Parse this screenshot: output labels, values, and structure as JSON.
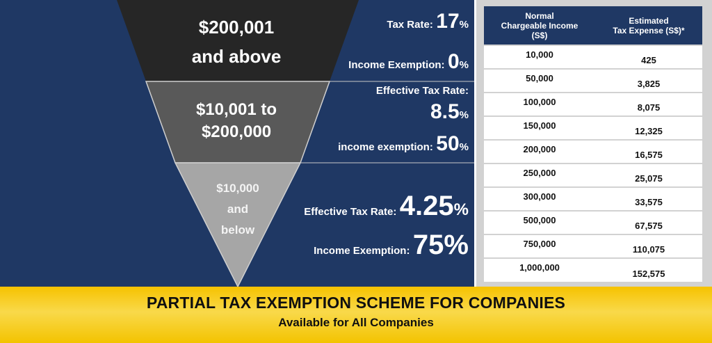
{
  "tiers": [
    {
      "line1": "$200,001",
      "line2": "and above"
    },
    {
      "line1": "$10,001 to",
      "line2": "$200,000"
    },
    {
      "line1": "$10,000",
      "line2": "and",
      "line3": "below"
    }
  ],
  "rates": {
    "tier1": {
      "tax_rate_label": "Tax Rate:",
      "tax_rate": "17",
      "exemption_label": "Income Exemption:",
      "exemption": "0",
      "pct": "%"
    },
    "tier2": {
      "tax_rate_label": "Effective Tax Rate:",
      "tax_rate": "8.5",
      "exemption_label": "income exemption:",
      "exemption": "50",
      "pct": "%"
    },
    "tier3": {
      "tax_rate_label": "Effective Tax Rate:",
      "tax_rate": "4.25",
      "exemption_label": "Income Exemption:",
      "exemption": "75",
      "pct": "%"
    }
  },
  "table": {
    "col1_header": [
      "Normal",
      "Chargeable Income",
      "(S$)"
    ],
    "col2_header": [
      "Estimated",
      "Tax Expense (S$)*"
    ],
    "rows": [
      [
        "10,000",
        "425"
      ],
      [
        "50,000",
        "3,825"
      ],
      [
        "100,000",
        "8,075"
      ],
      [
        "150,000",
        "12,325"
      ],
      [
        "200,000",
        "16,575"
      ],
      [
        "250,000",
        "25,075"
      ],
      [
        "300,000",
        "33,575"
      ],
      [
        "500,000",
        "67,575"
      ],
      [
        "750,000",
        "110,075"
      ],
      [
        "1,000,000",
        "152,575"
      ]
    ]
  },
  "footer": {
    "title": "PARTIAL TAX EXEMPTION SCHEME FOR COMPANIES",
    "subtitle": "Available for All Companies"
  },
  "colors": {
    "navy": "#1f3864",
    "tier1": "#262626",
    "tier2": "#595959",
    "tier3": "#a6a6a6",
    "footer": "#f6c200"
  }
}
